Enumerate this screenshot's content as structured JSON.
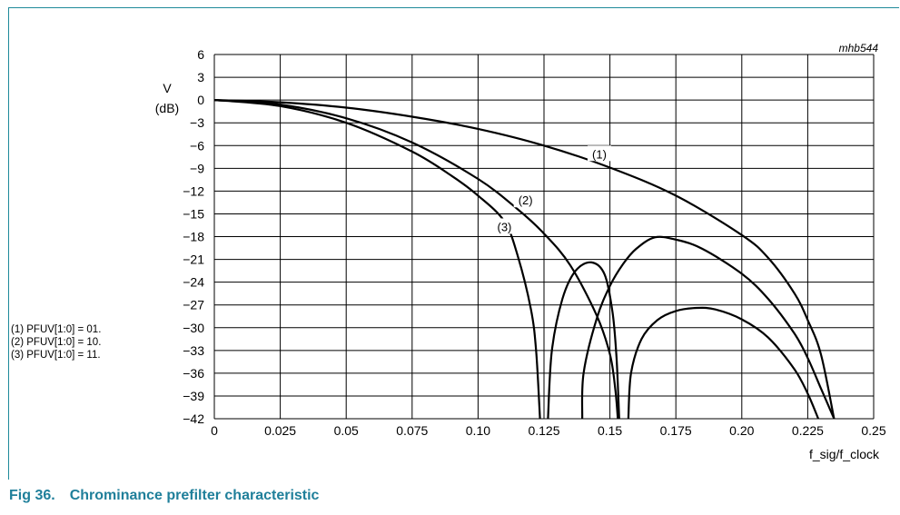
{
  "figure": {
    "number": "Fig 36.",
    "title": "Chrominance prefilter characteristic",
    "code": "mhb544"
  },
  "notes": [
    "(1) PFUV[1:0] = 01.",
    "(2) PFUV[1:0] = 10.",
    "(3) PFUV[1:0] = 11."
  ],
  "colors": {
    "caption": "#1f7f9a",
    "frame": "#1f8a9a",
    "grid": "#000000",
    "curve": "#000000"
  },
  "chart_data": {
    "type": "line",
    "title": "",
    "xlabel": "f_sig/f_clock",
    "ylabel_line1": "V",
    "ylabel_line2": "(dB)",
    "xlim": [
      0,
      0.25
    ],
    "ylim": [
      -42,
      6
    ],
    "grid": true,
    "xticks": [
      0,
      0.025,
      0.05,
      0.075,
      0.1,
      0.125,
      0.15,
      0.175,
      0.2,
      0.225,
      0.25
    ],
    "xtick_labels": [
      "0",
      "0.025",
      "0.05",
      "0.075",
      "0.10",
      "0.125",
      "0.15",
      "0.175",
      "0.20",
      "0.225",
      "0.25"
    ],
    "yticks": [
      6,
      3,
      0,
      -3,
      -6,
      -9,
      -12,
      -15,
      -18,
      -21,
      -24,
      -27,
      -30,
      -33,
      -36,
      -39,
      -42
    ],
    "ytick_labels": [
      "6",
      "3",
      "0",
      "−3",
      "−6",
      "−9",
      "−12",
      "−15",
      "−18",
      "−21",
      "−24",
      "−27",
      "−30",
      "−33",
      "−36",
      "−39",
      "−42"
    ],
    "series": [
      {
        "name": "(1)",
        "label_at": [
          0.146,
          -7.2
        ],
        "points": [
          [
            0,
            0
          ],
          [
            0.025,
            -0.3
          ],
          [
            0.05,
            -1.0
          ],
          [
            0.075,
            -2.2
          ],
          [
            0.1,
            -3.8
          ],
          [
            0.125,
            -6.0
          ],
          [
            0.15,
            -8.9
          ],
          [
            0.175,
            -12.6
          ],
          [
            0.2,
            -17.8
          ],
          [
            0.21,
            -20.8
          ],
          [
            0.22,
            -25.5
          ],
          [
            0.225,
            -29.0
          ],
          [
            0.23,
            -33.5
          ],
          [
            0.235,
            -42
          ]
        ]
      },
      {
        "name": "(2)",
        "label_at": [
          0.118,
          -13.3
        ],
        "points": [
          [
            0,
            0
          ],
          [
            0.025,
            -0.6
          ],
          [
            0.05,
            -2.4
          ],
          [
            0.075,
            -5.6
          ],
          [
            0.1,
            -10.4
          ],
          [
            0.115,
            -14.4
          ],
          [
            0.125,
            -17.6
          ],
          [
            0.135,
            -21.8
          ],
          [
            0.145,
            -28.4
          ],
          [
            0.15,
            -33.5
          ],
          [
            0.152,
            -38
          ],
          [
            0.153,
            -42
          ]
        ]
      },
      {
        "name": "(2)",
        "points": [
          [
            0.1395,
            -42
          ],
          [
            0.14,
            -36
          ],
          [
            0.145,
            -28.8
          ],
          [
            0.15,
            -24.5
          ],
          [
            0.155,
            -21.6
          ],
          [
            0.16,
            -19.6
          ],
          [
            0.167,
            -18.1
          ],
          [
            0.175,
            -18.4
          ],
          [
            0.185,
            -19.6
          ],
          [
            0.2,
            -22.9
          ],
          [
            0.21,
            -26.2
          ],
          [
            0.22,
            -30.8
          ],
          [
            0.225,
            -34.0
          ],
          [
            0.23,
            -38.0
          ],
          [
            0.235,
            -42
          ]
        ]
      },
      {
        "name": "(3)",
        "label_at": [
          0.11,
          -16.8
        ],
        "points": [
          [
            0,
            0
          ],
          [
            0.025,
            -0.8
          ],
          [
            0.05,
            -3.0
          ],
          [
            0.075,
            -6.8
          ],
          [
            0.09,
            -10.0
          ],
          [
            0.1,
            -12.6
          ],
          [
            0.11,
            -16.0
          ],
          [
            0.115,
            -20.5
          ],
          [
            0.12,
            -27.5
          ],
          [
            0.122,
            -33
          ],
          [
            0.1235,
            -42
          ]
        ]
      },
      {
        "name": "(3)",
        "points": [
          [
            0.1265,
            -42
          ],
          [
            0.128,
            -33
          ],
          [
            0.132,
            -26.2
          ],
          [
            0.137,
            -22.5
          ],
          [
            0.143,
            -21.4
          ],
          [
            0.148,
            -23.0
          ],
          [
            0.151,
            -28.0
          ],
          [
            0.1525,
            -34
          ],
          [
            0.1535,
            -42
          ]
        ]
      },
      {
        "name": "(3)",
        "points": [
          [
            0.157,
            -42
          ],
          [
            0.158,
            -36
          ],
          [
            0.162,
            -31.5
          ],
          [
            0.168,
            -29.0
          ],
          [
            0.175,
            -27.8
          ],
          [
            0.183,
            -27.4
          ],
          [
            0.19,
            -27.6
          ],
          [
            0.2,
            -28.9
          ],
          [
            0.21,
            -31.3
          ],
          [
            0.22,
            -35.5
          ],
          [
            0.225,
            -38.7
          ],
          [
            0.229,
            -42
          ]
        ]
      }
    ]
  }
}
